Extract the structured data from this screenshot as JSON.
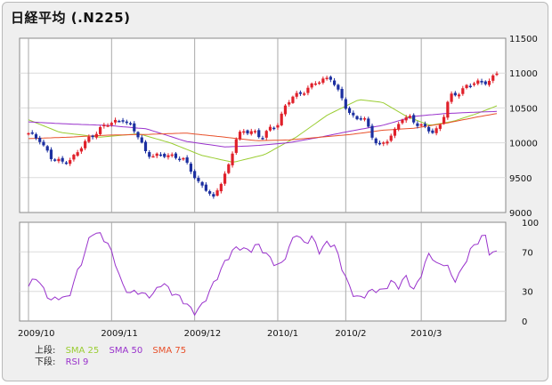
{
  "title": "日経平均 (.N225)",
  "legend": {
    "upper_label": "上段:",
    "lower_label": "下段:",
    "upper_items": [
      {
        "name": "SMA 25",
        "color": "#9acd32"
      },
      {
        "name": "SMA 50",
        "color": "#9932cc"
      },
      {
        "name": "SMA 75",
        "color": "#e8502a"
      }
    ],
    "lower_items": [
      {
        "name": "RSI 9",
        "color": "#9932cc"
      }
    ]
  },
  "colors": {
    "up_candle": "#e0202a",
    "down_candle": "#1c2fa0",
    "sma25": "#9acd32",
    "sma50": "#9932cc",
    "sma75": "#e8502a",
    "rsi": "#9932cc",
    "grid": "#dcdcdc",
    "vgrid": "#aaaaaa"
  },
  "chart_data": [
    {
      "type": "candlestick",
      "panel": "upper",
      "ylim": [
        9000,
        11500
      ],
      "yticks": [
        9000,
        9500,
        10000,
        10500,
        11000,
        11500
      ],
      "x_ticks": [
        {
          "label": "2009/10",
          "index": 0
        },
        {
          "label": "2009/11",
          "index": 22
        },
        {
          "label": "2009/12",
          "index": 44
        },
        {
          "label": "2010/1",
          "index": 66
        },
        {
          "label": "2010/2",
          "index": 84
        },
        {
          "label": "2010/3",
          "index": 104
        }
      ],
      "n_points": 125,
      "close_path": [
        [
          0,
          10120
        ],
        [
          3,
          10050
        ],
        [
          6,
          9750
        ],
        [
          9,
          9720
        ],
        [
          12,
          9820
        ],
        [
          15,
          10050
        ],
        [
          18,
          10200
        ],
        [
          21,
          10280
        ],
        [
          24,
          10350
        ],
        [
          26,
          10220
        ],
        [
          28,
          10080
        ],
        [
          30,
          9850
        ],
        [
          33,
          9800
        ],
        [
          36,
          9830
        ],
        [
          39,
          9780
        ],
        [
          41,
          9620
        ],
        [
          43,
          9450
        ],
        [
          45,
          9350
        ],
        [
          47,
          9180
        ],
        [
          49,
          9450
        ],
        [
          51,
          9700
        ],
        [
          53,
          10100
        ],
        [
          55,
          10150
        ],
        [
          57,
          10200
        ],
        [
          59,
          10050
        ],
        [
          61,
          10180
        ],
        [
          63,
          10250
        ],
        [
          65,
          10500
        ],
        [
          67,
          10650
        ],
        [
          69,
          10700
        ],
        [
          71,
          10800
        ],
        [
          73,
          10850
        ],
        [
          75,
          10900
        ],
        [
          77,
          10950
        ],
        [
          79,
          10700
        ],
        [
          81,
          10450
        ],
        [
          83,
          10350
        ],
        [
          85,
          10400
        ],
        [
          87,
          10100
        ],
        [
          89,
          9950
        ],
        [
          91,
          10050
        ],
        [
          93,
          10150
        ],
        [
          95,
          10350
        ],
        [
          97,
          10380
        ],
        [
          99,
          10250
        ],
        [
          101,
          10200
        ],
        [
          103,
          10150
        ],
        [
          105,
          10300
        ],
        [
          107,
          10650
        ],
        [
          109,
          10700
        ],
        [
          111,
          10820
        ],
        [
          113,
          10850
        ],
        [
          115,
          10850
        ],
        [
          117,
          10900
        ],
        [
          119,
          11000
        ]
      ],
      "series": [
        {
          "name": "SMA 25",
          "values": [
            [
              0,
              10330
            ],
            [
              8,
              10150
            ],
            [
              18,
              10080
            ],
            [
              28,
              10130
            ],
            [
              36,
              10000
            ],
            [
              44,
              9820
            ],
            [
              52,
              9720
            ],
            [
              60,
              9830
            ],
            [
              68,
              10080
            ],
            [
              76,
              10400
            ],
            [
              84,
              10620
            ],
            [
              90,
              10580
            ],
            [
              96,
              10380
            ],
            [
              102,
              10250
            ],
            [
              108,
              10310
            ],
            [
              114,
              10420
            ],
            [
              119,
              10530
            ]
          ]
        },
        {
          "name": "SMA 50",
          "values": [
            [
              0,
              10300
            ],
            [
              10,
              10270
            ],
            [
              20,
              10250
            ],
            [
              30,
              10200
            ],
            [
              40,
              10020
            ],
            [
              50,
              9940
            ],
            [
              58,
              9960
            ],
            [
              66,
              10000
            ],
            [
              74,
              10080
            ],
            [
              82,
              10170
            ],
            [
              90,
              10250
            ],
            [
              98,
              10380
            ],
            [
              106,
              10420
            ],
            [
              114,
              10440
            ],
            [
              119,
              10450
            ]
          ]
        },
        {
          "name": "SMA 75",
          "values": [
            [
              0,
              10060
            ],
            [
              10,
              10080
            ],
            [
              20,
              10110
            ],
            [
              30,
              10120
            ],
            [
              40,
              10140
            ],
            [
              50,
              10080
            ],
            [
              58,
              10030
            ],
            [
              66,
              10040
            ],
            [
              74,
              10080
            ],
            [
              82,
              10120
            ],
            [
              90,
              10180
            ],
            [
              98,
              10210
            ],
            [
              106,
              10280
            ],
            [
              114,
              10370
            ],
            [
              119,
              10420
            ]
          ]
        }
      ]
    },
    {
      "type": "line",
      "panel": "lower",
      "ylim": [
        0,
        100
      ],
      "yticks": [
        0,
        30,
        70,
        100
      ],
      "series": [
        {
          "name": "RSI 9",
          "values": [
            [
              0,
              35
            ],
            [
              2,
              45
            ],
            [
              4,
              30
            ],
            [
              6,
              20
            ],
            [
              8,
              25
            ],
            [
              10,
              22
            ],
            [
              12,
              45
            ],
            [
              14,
              65
            ],
            [
              16,
              90
            ],
            [
              18,
              88
            ],
            [
              20,
              80
            ],
            [
              22,
              60
            ],
            [
              24,
              35
            ],
            [
              26,
              28
            ],
            [
              28,
              30
            ],
            [
              30,
              25
            ],
            [
              32,
              28
            ],
            [
              34,
              40
            ],
            [
              36,
              30
            ],
            [
              38,
              25
            ],
            [
              40,
              18
            ],
            [
              42,
              8
            ],
            [
              44,
              15
            ],
            [
              46,
              30
            ],
            [
              48,
              45
            ],
            [
              50,
              60
            ],
            [
              52,
              72
            ],
            [
              54,
              75
            ],
            [
              56,
              70
            ],
            [
              58,
              78
            ],
            [
              60,
              70
            ],
            [
              62,
              60
            ],
            [
              64,
              55
            ],
            [
              66,
              72
            ],
            [
              68,
              90
            ],
            [
              70,
              78
            ],
            [
              72,
              85
            ],
            [
              74,
              70
            ],
            [
              76,
              80
            ],
            [
              78,
              75
            ],
            [
              80,
              50
            ],
            [
              82,
              30
            ],
            [
              84,
              22
            ],
            [
              86,
              28
            ],
            [
              88,
              32
            ],
            [
              90,
              30
            ],
            [
              92,
              40
            ],
            [
              94,
              35
            ],
            [
              96,
              45
            ],
            [
              98,
              30
            ],
            [
              100,
              50
            ],
            [
              102,
              70
            ],
            [
              104,
              55
            ],
            [
              106,
              60
            ],
            [
              108,
              40
            ],
            [
              110,
              50
            ],
            [
              112,
              70
            ],
            [
              114,
              80
            ],
            [
              116,
              88
            ],
            [
              117,
              70
            ],
            [
              118,
              68
            ],
            [
              119,
              70
            ]
          ]
        }
      ]
    }
  ]
}
